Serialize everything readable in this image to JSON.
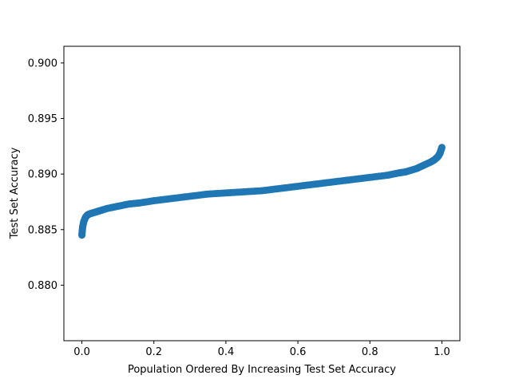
{
  "chart_data": {
    "type": "scatter",
    "title": "",
    "xlabel": "Population Ordered By Increasing Test Set Accuracy",
    "ylabel": "Test Set Accuracy",
    "xlim": [
      -0.05,
      1.05
    ],
    "ylim": [
      0.875,
      0.9015
    ],
    "xticks": [
      0.0,
      0.2,
      0.4,
      0.6,
      0.8,
      1.0
    ],
    "xtick_labels": [
      "0.0",
      "0.2",
      "0.4",
      "0.6",
      "0.8",
      "1.0"
    ],
    "yticks": [
      0.88,
      0.885,
      0.89,
      0.895,
      0.9
    ],
    "ytick_labels": [
      "0.880",
      "0.885",
      "0.890",
      "0.895",
      "0.900"
    ],
    "grid": false,
    "series": [
      {
        "color": "#1f77b4",
        "x": [
          0.0,
          0.002,
          0.005,
          0.01,
          0.015,
          0.02,
          0.03,
          0.04,
          0.05,
          0.07,
          0.1,
          0.13,
          0.16,
          0.2,
          0.25,
          0.3,
          0.35,
          0.4,
          0.45,
          0.5,
          0.55,
          0.6,
          0.65,
          0.7,
          0.75,
          0.8,
          0.85,
          0.88,
          0.9,
          0.93,
          0.95,
          0.97,
          0.98,
          0.99,
          0.995,
          1.0
        ],
        "y": [
          0.8845,
          0.8852,
          0.8857,
          0.8861,
          0.8863,
          0.8864,
          0.8865,
          0.8866,
          0.8867,
          0.8869,
          0.8871,
          0.8873,
          0.8874,
          0.8876,
          0.8878,
          0.888,
          0.8882,
          0.8883,
          0.8884,
          0.8885,
          0.8887,
          0.8889,
          0.8891,
          0.8893,
          0.8895,
          0.8897,
          0.8899,
          0.8901,
          0.8902,
          0.8905,
          0.8908,
          0.8911,
          0.8913,
          0.8916,
          0.8919,
          0.8924
        ]
      }
    ]
  }
}
